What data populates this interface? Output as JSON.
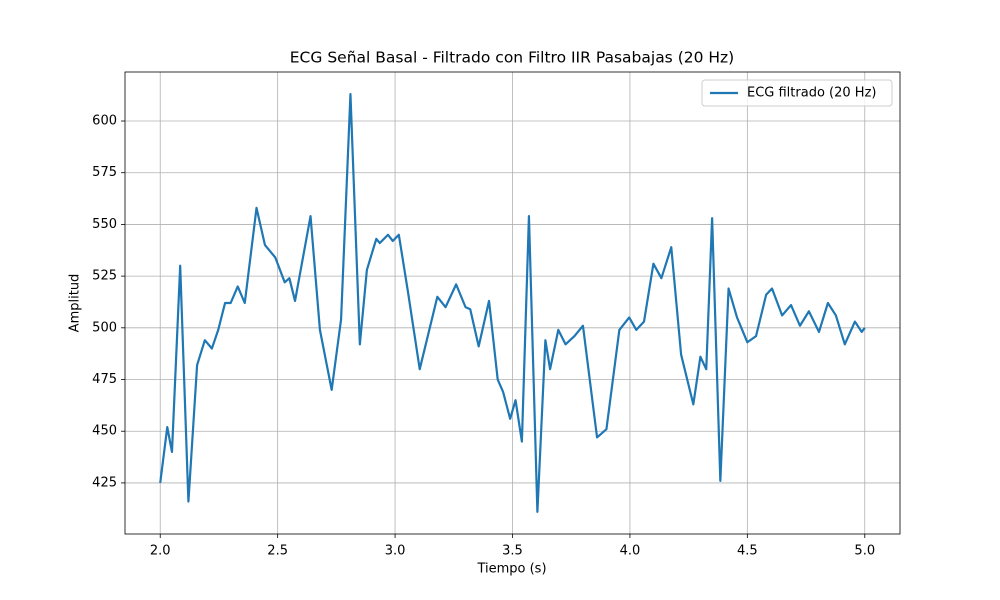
{
  "chart_data": {
    "type": "line",
    "title": "ECG Señal Basal - Filtrado con Filtro IIR Pasabajas (20 Hz)",
    "x_label": "Tiempo (s)",
    "y_label": "Amplitud",
    "x": [
      2.0,
      2.03,
      2.05,
      2.085,
      2.12,
      2.157,
      2.19,
      2.22,
      2.247,
      2.276,
      2.3,
      2.33,
      2.36,
      2.41,
      2.446,
      2.49,
      2.53,
      2.55,
      2.574,
      2.64,
      2.68,
      2.73,
      2.77,
      2.81,
      2.85,
      2.88,
      2.92,
      2.935,
      2.97,
      2.99,
      3.016,
      3.054,
      3.105,
      3.18,
      3.215,
      3.26,
      3.3,
      3.32,
      3.356,
      3.4,
      3.437,
      3.46,
      3.49,
      3.513,
      3.54,
      3.57,
      3.606,
      3.64,
      3.66,
      3.695,
      3.726,
      3.764,
      3.8,
      3.86,
      3.9,
      3.955,
      3.997,
      4.027,
      4.06,
      4.1,
      4.134,
      4.176,
      4.218,
      4.27,
      4.3,
      4.325,
      4.35,
      4.385,
      4.42,
      4.456,
      4.5,
      4.537,
      4.58,
      4.605,
      4.648,
      4.686,
      4.724,
      4.762,
      4.805,
      4.843,
      4.877,
      4.915,
      4.958,
      4.987,
      5.0
    ],
    "series": [
      {
        "name": "ECG filtrado (20 Hz)",
        "color": "#1f77b4",
        "values": [
          425,
          452,
          440,
          530,
          416,
          482,
          494,
          490,
          499,
          512,
          512,
          520,
          512,
          558,
          540,
          534,
          522,
          524,
          513,
          554,
          499,
          470,
          504,
          613,
          492,
          528,
          543,
          541,
          545,
          542,
          545,
          518,
          480,
          515,
          510,
          521,
          510,
          509,
          491,
          513,
          475,
          469,
          456,
          465,
          445,
          554,
          411,
          494,
          480,
          499,
          492,
          496,
          501,
          447,
          451,
          499,
          505,
          499,
          503,
          531,
          524,
          539,
          487,
          463,
          486,
          480,
          553,
          426,
          519,
          505,
          493,
          496,
          516,
          519,
          506,
          511,
          501,
          508,
          498,
          512,
          506,
          492,
          503,
          498,
          500
        ]
      }
    ],
    "xlim": [
      1.85,
      5.15
    ],
    "ylim": [
      400.3,
      623.7
    ],
    "xticks": [
      {
        "value": 2.0,
        "label": "2.0"
      },
      2.5,
      {
        "value": 3.0,
        "label": "3.0"
      },
      3.5,
      {
        "value": 4.0,
        "label": "4.0"
      },
      4.5,
      {
        "value": 5.0,
        "label": "5.0"
      }
    ],
    "yticks": [
      425,
      450,
      475,
      500,
      525,
      550,
      575,
      600
    ],
    "grid": true,
    "legend": "upper-right"
  }
}
